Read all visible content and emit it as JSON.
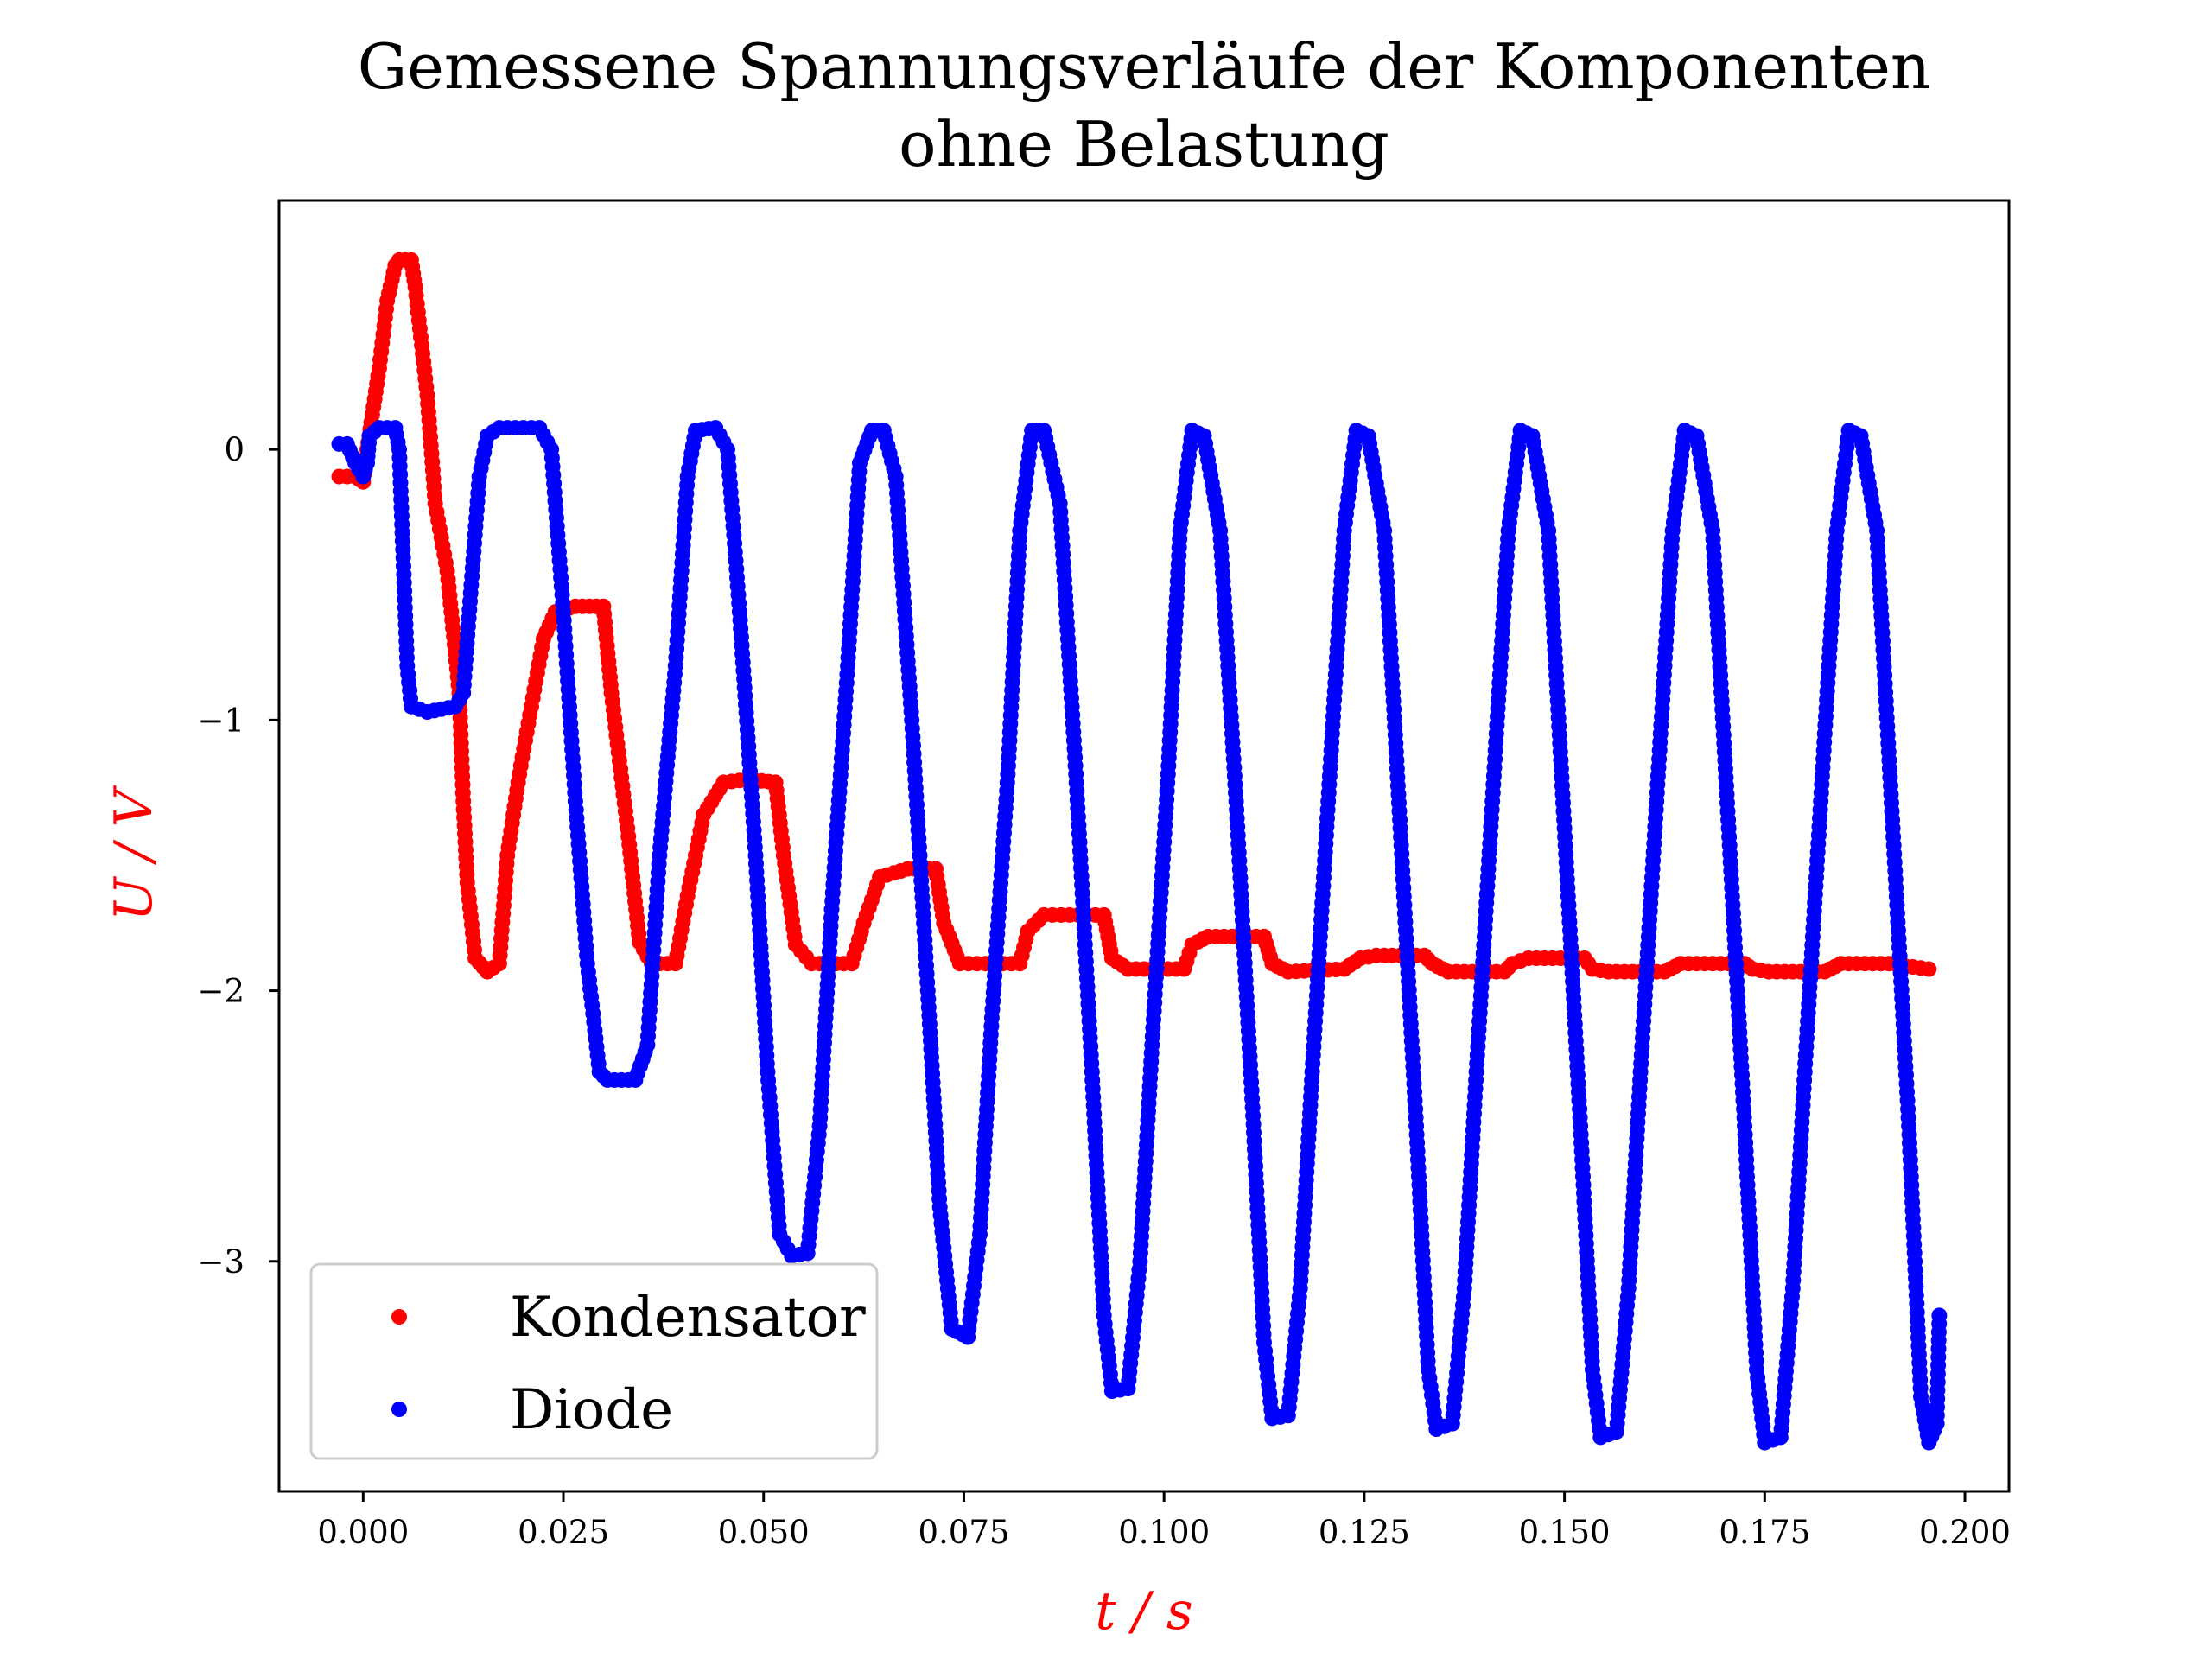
{
  "chart_data": {
    "type": "scatter",
    "title_line1": "Gemessene Spannungsverläufe der Komponenten",
    "title_line2": "ohne Belastung",
    "xlabel": "t / s",
    "ylabel": "U / V",
    "xlim": [
      -0.0105,
      0.2055
    ],
    "ylim": [
      -3.85,
      0.92
    ],
    "x_ticks": [
      0.0,
      0.025,
      0.05,
      0.075,
      0.1,
      0.125,
      0.15,
      0.175,
      0.2
    ],
    "x_tick_labels": [
      "0.000",
      "0.025",
      "0.050",
      "0.075",
      "0.100",
      "0.125",
      "0.150",
      "0.175",
      "0.200"
    ],
    "y_ticks": [
      0,
      -1,
      -2,
      -3
    ],
    "y_tick_labels": [
      "0",
      "−1",
      "−2",
      "−3"
    ],
    "grid": false,
    "legend_position": "lower-left",
    "series": [
      {
        "name": "Kondensator",
        "color": "#ff0000",
        "points": [
          [
            -0.003,
            -0.1
          ],
          [
            -0.001,
            -0.1
          ],
          [
            0.0,
            -0.12
          ],
          [
            0.0005,
            0.0
          ],
          [
            0.001,
            0.1
          ],
          [
            0.002,
            0.3
          ],
          [
            0.003,
            0.55
          ],
          [
            0.004,
            0.68
          ],
          [
            0.0045,
            0.7
          ],
          [
            0.006,
            0.7
          ],
          [
            0.0065,
            0.6
          ],
          [
            0.008,
            0.2
          ],
          [
            0.009,
            -0.2
          ],
          [
            0.0105,
            -0.45
          ],
          [
            0.012,
            -0.9
          ],
          [
            0.0125,
            -1.3
          ],
          [
            0.013,
            -1.6
          ],
          [
            0.014,
            -1.88
          ],
          [
            0.0155,
            -1.93
          ],
          [
            0.017,
            -1.9
          ],
          [
            0.018,
            -1.5
          ],
          [
            0.0195,
            -1.2
          ],
          [
            0.021,
            -0.95
          ],
          [
            0.0225,
            -0.7
          ],
          [
            0.024,
            -0.6
          ],
          [
            0.0265,
            -0.58
          ],
          [
            0.03,
            -0.58
          ],
          [
            0.031,
            -0.9
          ],
          [
            0.033,
            -1.4
          ],
          [
            0.0345,
            -1.82
          ],
          [
            0.036,
            -1.9
          ],
          [
            0.039,
            -1.9
          ],
          [
            0.0405,
            -1.65
          ],
          [
            0.0425,
            -1.35
          ],
          [
            0.045,
            -1.23
          ],
          [
            0.048,
            -1.22
          ],
          [
            0.0515,
            -1.23
          ],
          [
            0.0525,
            -1.5
          ],
          [
            0.054,
            -1.83
          ],
          [
            0.056,
            -1.9
          ],
          [
            0.061,
            -1.9
          ],
          [
            0.0625,
            -1.75
          ],
          [
            0.0645,
            -1.58
          ],
          [
            0.068,
            -1.55
          ],
          [
            0.0715,
            -1.55
          ],
          [
            0.0725,
            -1.75
          ],
          [
            0.0745,
            -1.9
          ],
          [
            0.082,
            -1.9
          ],
          [
            0.083,
            -1.78
          ],
          [
            0.085,
            -1.72
          ],
          [
            0.0925,
            -1.72
          ],
          [
            0.0935,
            -1.88
          ],
          [
            0.0955,
            -1.92
          ],
          [
            0.1025,
            -1.92
          ],
          [
            0.1035,
            -1.83
          ],
          [
            0.1055,
            -1.8
          ],
          [
            0.1125,
            -1.8
          ],
          [
            0.1135,
            -1.9
          ],
          [
            0.1155,
            -1.93
          ],
          [
            0.1225,
            -1.92
          ],
          [
            0.1245,
            -1.88
          ],
          [
            0.1265,
            -1.87
          ],
          [
            0.1325,
            -1.87
          ],
          [
            0.1335,
            -1.9
          ],
          [
            0.1355,
            -1.93
          ],
          [
            0.1425,
            -1.93
          ],
          [
            0.1435,
            -1.9
          ],
          [
            0.1455,
            -1.88
          ],
          [
            0.1525,
            -1.88
          ],
          [
            0.1535,
            -1.92
          ],
          [
            0.1555,
            -1.93
          ],
          [
            0.1625,
            -1.93
          ],
          [
            0.1645,
            -1.9
          ],
          [
            0.1665,
            -1.9
          ],
          [
            0.1725,
            -1.9
          ],
          [
            0.1735,
            -1.92
          ],
          [
            0.1755,
            -1.93
          ],
          [
            0.1825,
            -1.93
          ],
          [
            0.1845,
            -1.9
          ],
          [
            0.1905,
            -1.9
          ],
          [
            0.1955,
            -1.92
          ]
        ]
      },
      {
        "name": "Diode",
        "color": "#0000ff",
        "points": [
          [
            -0.003,
            0.02
          ],
          [
            -0.002,
            0.02
          ],
          [
            -0.001,
            -0.05
          ],
          [
            0.0,
            -0.1
          ],
          [
            0.0005,
            -0.05
          ],
          [
            0.0008,
            0.05
          ],
          [
            0.002,
            0.08
          ],
          [
            0.004,
            0.08
          ],
          [
            0.0045,
            0.0
          ],
          [
            0.005,
            -0.4
          ],
          [
            0.0055,
            -0.8
          ],
          [
            0.006,
            -0.95
          ],
          [
            0.008,
            -0.97
          ],
          [
            0.0115,
            -0.95
          ],
          [
            0.0125,
            -0.9
          ],
          [
            0.0135,
            -0.5
          ],
          [
            0.0145,
            -0.1
          ],
          [
            0.0155,
            0.05
          ],
          [
            0.017,
            0.08
          ],
          [
            0.022,
            0.08
          ],
          [
            0.0235,
            0.0
          ],
          [
            0.025,
            -0.6
          ],
          [
            0.0265,
            -1.3
          ],
          [
            0.028,
            -1.9
          ],
          [
            0.0295,
            -2.3
          ],
          [
            0.0305,
            -2.33
          ],
          [
            0.034,
            -2.33
          ],
          [
            0.0355,
            -2.2
          ],
          [
            0.037,
            -1.5
          ],
          [
            0.039,
            -0.8
          ],
          [
            0.0405,
            -0.1
          ],
          [
            0.0415,
            0.07
          ],
          [
            0.044,
            0.08
          ],
          [
            0.0455,
            0.0
          ],
          [
            0.047,
            -0.6
          ],
          [
            0.049,
            -1.5
          ],
          [
            0.0505,
            -2.3
          ],
          [
            0.052,
            -2.9
          ],
          [
            0.0535,
            -2.98
          ],
          [
            0.0555,
            -2.97
          ],
          [
            0.057,
            -2.5
          ],
          [
            0.0585,
            -1.7
          ],
          [
            0.0605,
            -0.8
          ],
          [
            0.062,
            -0.05
          ],
          [
            0.0635,
            0.07
          ],
          [
            0.065,
            0.07
          ],
          [
            0.0665,
            -0.1
          ],
          [
            0.0685,
            -1.0
          ],
          [
            0.0705,
            -2.0
          ],
          [
            0.072,
            -2.8
          ],
          [
            0.0735,
            -3.25
          ],
          [
            0.0755,
            -3.28
          ],
          [
            0.077,
            -2.9
          ],
          [
            0.0785,
            -2.1
          ],
          [
            0.0805,
            -1.2
          ],
          [
            0.082,
            -0.3
          ],
          [
            0.0835,
            0.07
          ],
          [
            0.085,
            0.07
          ],
          [
            0.087,
            -0.2
          ],
          [
            0.089,
            -1.2
          ],
          [
            0.091,
            -2.3
          ],
          [
            0.0925,
            -3.2
          ],
          [
            0.0935,
            -3.48
          ],
          [
            0.0955,
            -3.47
          ],
          [
            0.097,
            -3.0
          ],
          [
            0.0985,
            -2.2
          ],
          [
            0.1005,
            -1.2
          ],
          [
            0.102,
            -0.3
          ],
          [
            0.1035,
            0.07
          ],
          [
            0.105,
            0.05
          ],
          [
            0.107,
            -0.3
          ],
          [
            0.109,
            -1.3
          ],
          [
            0.111,
            -2.4
          ],
          [
            0.1125,
            -3.3
          ],
          [
            0.1135,
            -3.58
          ],
          [
            0.1155,
            -3.57
          ],
          [
            0.117,
            -3.1
          ],
          [
            0.1185,
            -2.3
          ],
          [
            0.1205,
            -1.3
          ],
          [
            0.1225,
            -0.3
          ],
          [
            0.124,
            0.07
          ],
          [
            0.1255,
            0.05
          ],
          [
            0.1275,
            -0.3
          ],
          [
            0.1295,
            -1.4
          ],
          [
            0.1315,
            -2.5
          ],
          [
            0.133,
            -3.4
          ],
          [
            0.134,
            -3.62
          ],
          [
            0.136,
            -3.6
          ],
          [
            0.1375,
            -3.1
          ],
          [
            0.139,
            -2.3
          ],
          [
            0.141,
            -1.3
          ],
          [
            0.143,
            -0.3
          ],
          [
            0.1445,
            0.07
          ],
          [
            0.146,
            0.05
          ],
          [
            0.148,
            -0.3
          ],
          [
            0.15,
            -1.4
          ],
          [
            0.152,
            -2.5
          ],
          [
            0.1535,
            -3.4
          ],
          [
            0.1545,
            -3.65
          ],
          [
            0.1565,
            -3.63
          ],
          [
            0.158,
            -3.1
          ],
          [
            0.1595,
            -2.3
          ],
          [
            0.1615,
            -1.3
          ],
          [
            0.1635,
            -0.3
          ],
          [
            0.165,
            0.07
          ],
          [
            0.1665,
            0.05
          ],
          [
            0.1685,
            -0.3
          ],
          [
            0.1705,
            -1.4
          ],
          [
            0.1725,
            -2.5
          ],
          [
            0.174,
            -3.4
          ],
          [
            0.175,
            -3.67
          ],
          [
            0.177,
            -3.65
          ],
          [
            0.1785,
            -3.1
          ],
          [
            0.18,
            -2.3
          ],
          [
            0.182,
            -1.3
          ],
          [
            0.184,
            -0.3
          ],
          [
            0.1855,
            0.07
          ],
          [
            0.187,
            0.05
          ],
          [
            0.189,
            -0.3
          ],
          [
            0.191,
            -1.4
          ],
          [
            0.193,
            -2.5
          ],
          [
            0.1945,
            -3.5
          ],
          [
            0.1955,
            -3.67
          ],
          [
            0.1965,
            -3.6
          ],
          [
            0.1968,
            -3.2
          ]
        ]
      }
    ]
  }
}
